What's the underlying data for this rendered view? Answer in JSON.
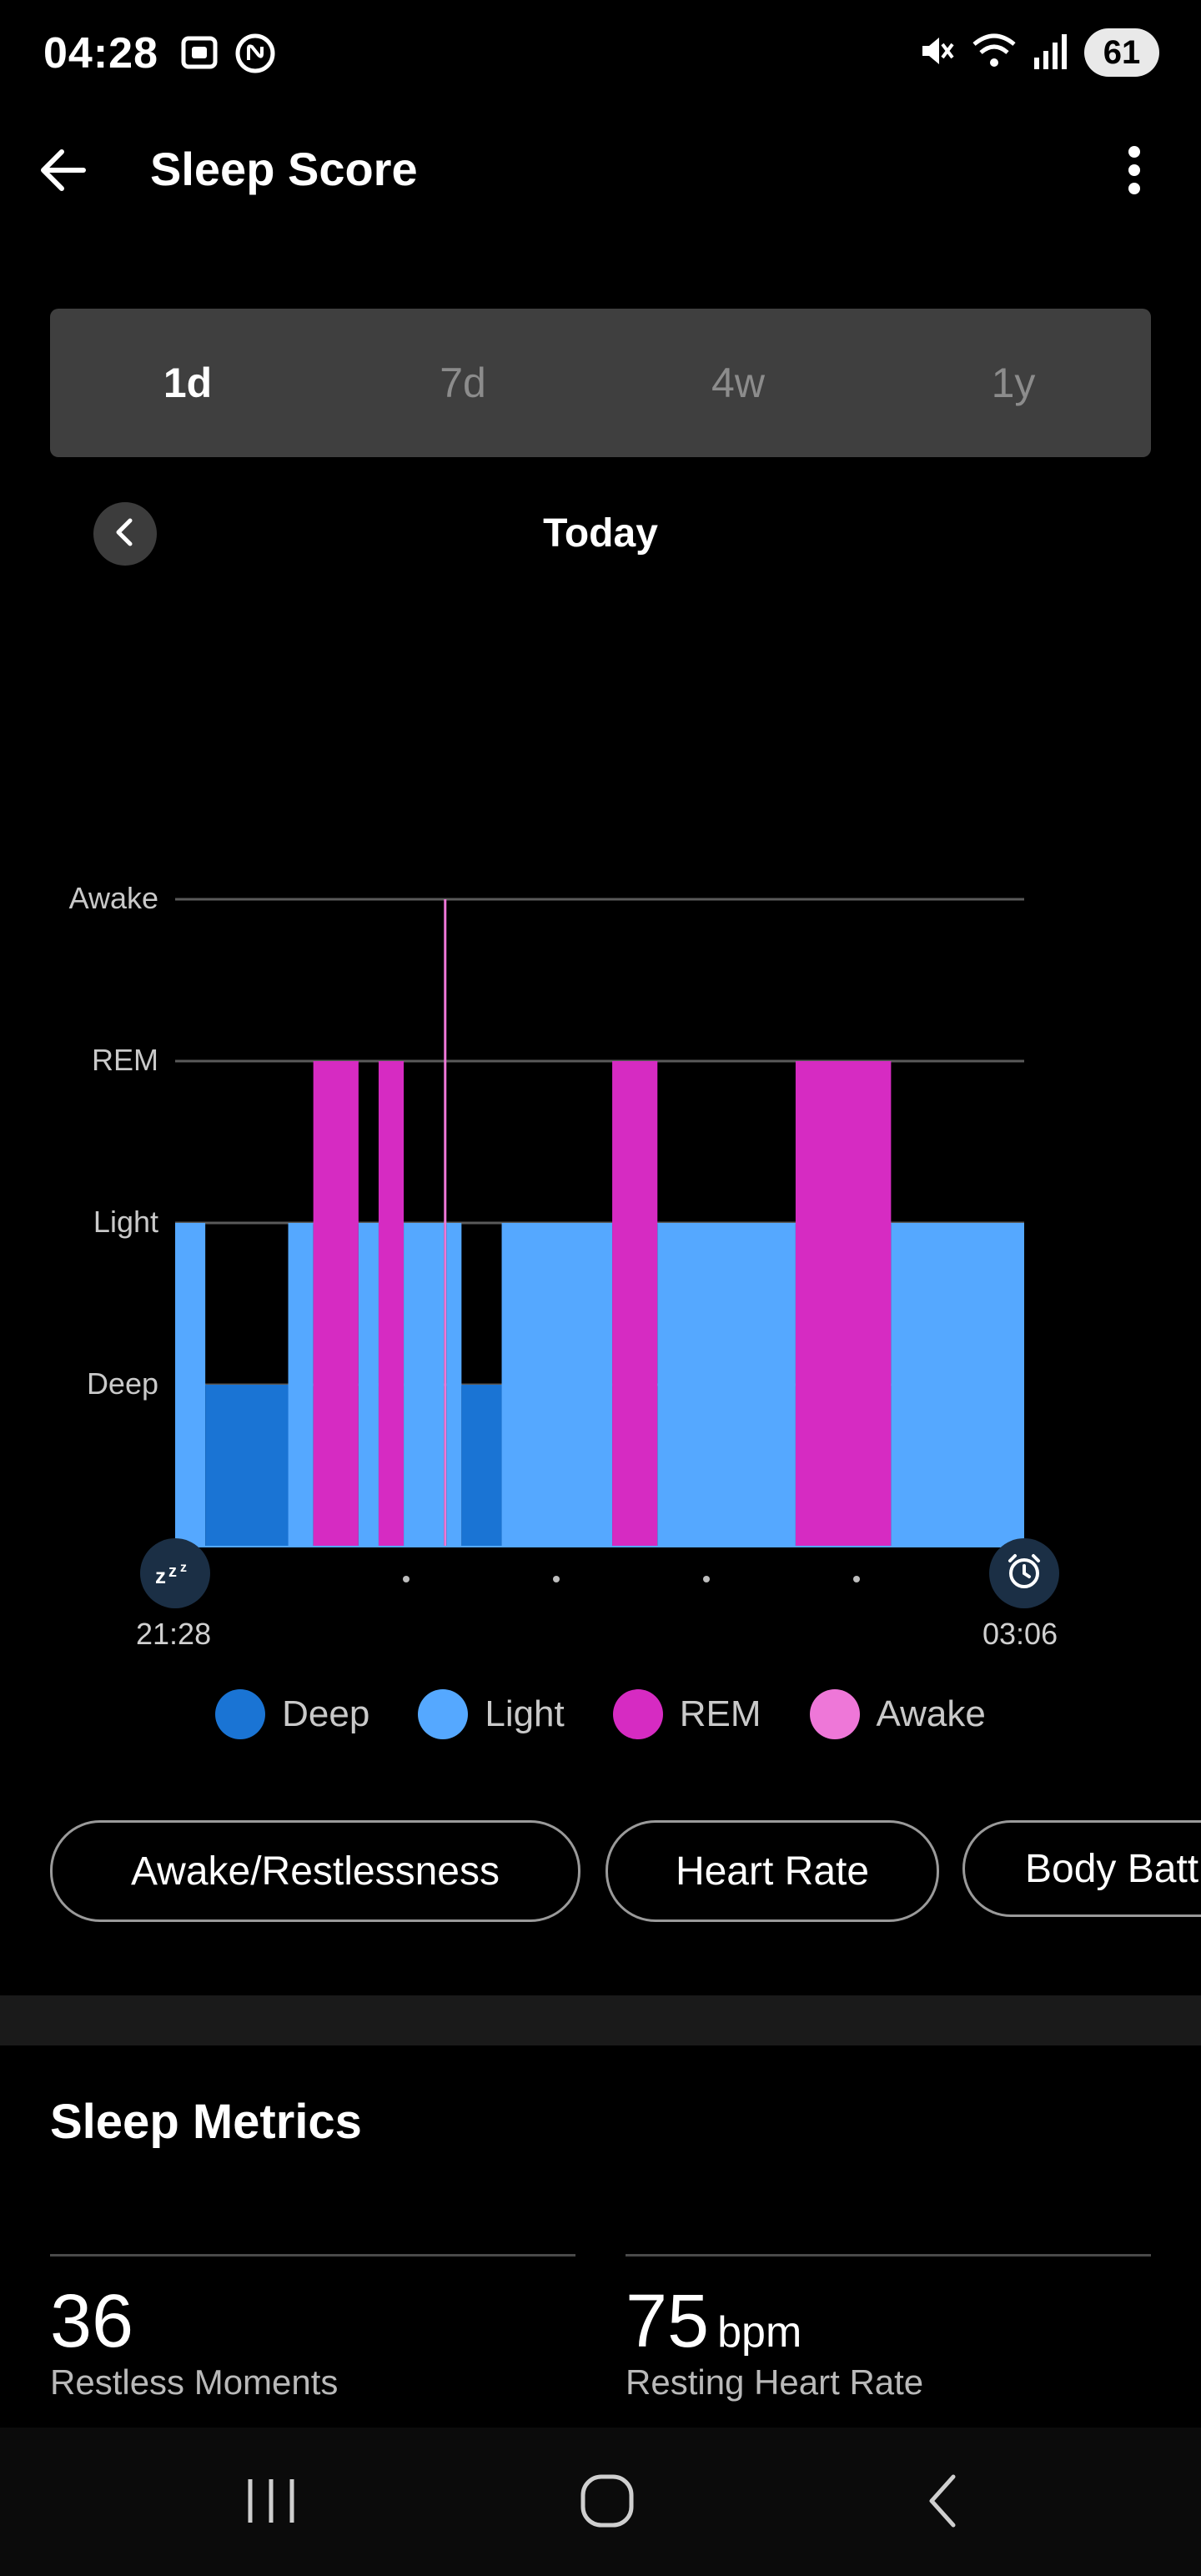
{
  "status_bar": {
    "time": "04:28",
    "battery": "61",
    "icons": [
      "screenshot-icon",
      "nfc-icon",
      "mute-icon",
      "wifi-icon",
      "signal-icon"
    ]
  },
  "header": {
    "title": "Sleep Score",
    "back_icon": "arrow-left-icon",
    "more_icon": "more-vertical-icon"
  },
  "range_tabs": [
    {
      "label": "1d",
      "active": true
    },
    {
      "label": "7d",
      "active": false
    },
    {
      "label": "4w",
      "active": false
    },
    {
      "label": "1y",
      "active": false
    }
  ],
  "date_nav": {
    "label": "Today",
    "prev_icon": "chevron-left-icon"
  },
  "chart_data": {
    "type": "step-bar",
    "y_levels": [
      "Awake",
      "REM",
      "Light",
      "Deep"
    ],
    "x_start": "21:28",
    "x_end": "03:06",
    "start_icon": "sleep-zzz-icon",
    "end_icon": "alarm-clock-icon",
    "colors": {
      "Deep": "#1a74d4",
      "Light": "#55a8ff",
      "REM": "#d62bc2",
      "Awake": "#ee77d8"
    },
    "segments": [
      {
        "start": "21:28",
        "end": "21:40",
        "stage": "Light"
      },
      {
        "start": "21:40",
        "end": "22:13",
        "stage": "Deep"
      },
      {
        "start": "22:13",
        "end": "22:23",
        "stage": "Light"
      },
      {
        "start": "22:23",
        "end": "22:41",
        "stage": "REM"
      },
      {
        "start": "22:41",
        "end": "22:49",
        "stage": "Light"
      },
      {
        "start": "22:49",
        "end": "22:59",
        "stage": "REM"
      },
      {
        "start": "22:59",
        "end": "23:15",
        "stage": "Light"
      },
      {
        "start": "23:15",
        "end": "23:16",
        "stage": "Awake"
      },
      {
        "start": "23:16",
        "end": "23:22",
        "stage": "Light"
      },
      {
        "start": "23:22",
        "end": "23:38",
        "stage": "Deep"
      },
      {
        "start": "23:38",
        "end": "00:22",
        "stage": "Light"
      },
      {
        "start": "00:22",
        "end": "00:40",
        "stage": "REM"
      },
      {
        "start": "00:40",
        "end": "01:35",
        "stage": "Light"
      },
      {
        "start": "01:35",
        "end": "02:13",
        "stage": "REM"
      },
      {
        "start": "02:13",
        "end": "03:06",
        "stage": "Light"
      }
    ]
  },
  "legend": [
    {
      "label": "Deep",
      "color": "#1a74d4"
    },
    {
      "label": "Light",
      "color": "#55a8ff"
    },
    {
      "label": "REM",
      "color": "#d62bc2"
    },
    {
      "label": "Awake",
      "color": "#ee77d8"
    }
  ],
  "chips": [
    "Awake/Restlessness",
    "Heart Rate",
    "Body Batt"
  ],
  "sleep_metrics": {
    "title": "Sleep Metrics",
    "items": [
      {
        "value": "36",
        "unit": "",
        "label": "Restless Moments"
      },
      {
        "value": "75",
        "unit": "bpm",
        "label": "Resting Heart Rate"
      }
    ]
  },
  "nav_bar": {
    "icons": [
      "recent-apps-icon",
      "home-icon",
      "back-icon"
    ]
  }
}
